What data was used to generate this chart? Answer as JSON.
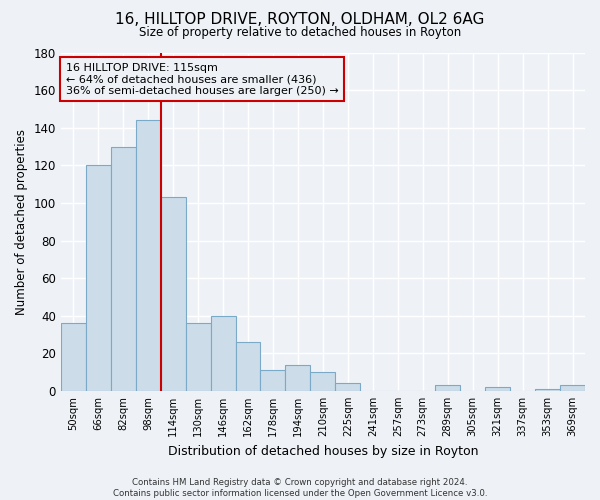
{
  "title": "16, HILLTOP DRIVE, ROYTON, OLDHAM, OL2 6AG",
  "subtitle": "Size of property relative to detached houses in Royton",
  "xlabel": "Distribution of detached houses by size in Royton",
  "ylabel": "Number of detached properties",
  "bar_labels": [
    "50sqm",
    "66sqm",
    "82sqm",
    "98sqm",
    "114sqm",
    "130sqm",
    "146sqm",
    "162sqm",
    "178sqm",
    "194sqm",
    "210sqm",
    "225sqm",
    "241sqm",
    "257sqm",
    "273sqm",
    "289sqm",
    "305sqm",
    "321sqm",
    "337sqm",
    "353sqm",
    "369sqm"
  ],
  "bar_values": [
    36,
    120,
    130,
    144,
    103,
    36,
    40,
    26,
    11,
    14,
    10,
    4,
    0,
    0,
    0,
    3,
    0,
    2,
    0,
    1,
    3
  ],
  "bar_color": "#ccdce8",
  "bar_edge_color": "#7aaac8",
  "ylim": [
    0,
    180
  ],
  "yticks": [
    0,
    20,
    40,
    60,
    80,
    100,
    120,
    140,
    160,
    180
  ],
  "vline_x": 3.5,
  "vline_color": "#cc0000",
  "annotation_line1": "16 HILLTOP DRIVE: 115sqm",
  "annotation_line2": "← 64% of detached houses are smaller (436)",
  "annotation_line3": "36% of semi-detached houses are larger (250) →",
  "annotation_box_edge": "#cc0000",
  "footer_line1": "Contains HM Land Registry data © Crown copyright and database right 2024.",
  "footer_line2": "Contains public sector information licensed under the Open Government Licence v3.0.",
  "background_color": "#eef2f7",
  "grid_color": "#ffffff"
}
